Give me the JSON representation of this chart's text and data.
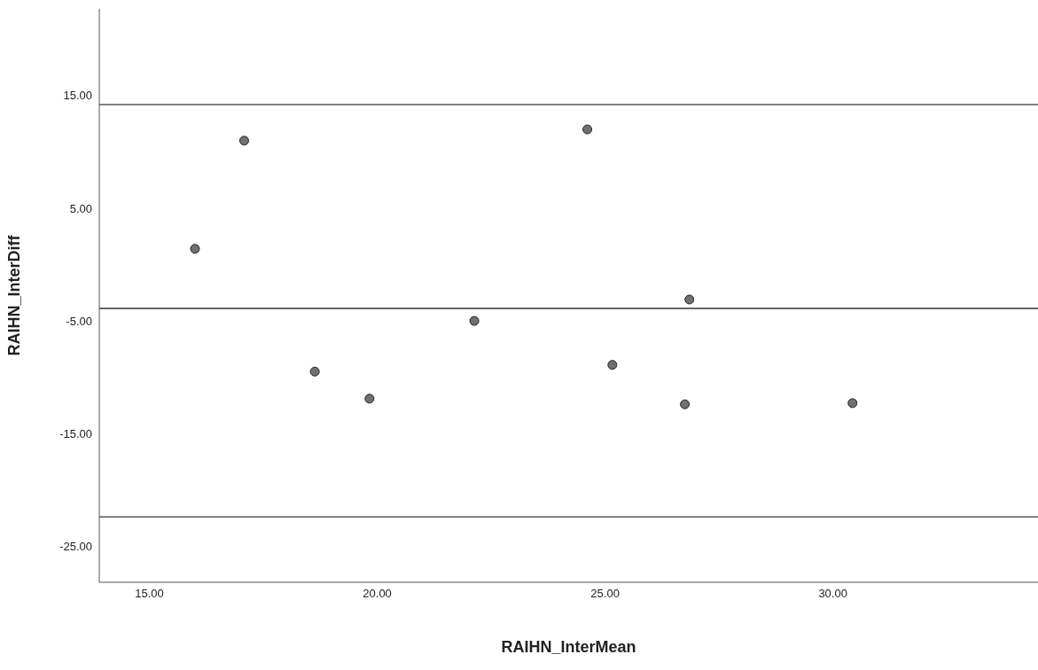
{
  "chart_data": {
    "type": "scatter",
    "xlabel": "RAIHN_InterMean",
    "ylabel": "RAIHN_InterDiff",
    "x": [
      16.0,
      17.08,
      18.63,
      19.83,
      22.13,
      24.61,
      25.16,
      26.85,
      26.75,
      30.43
    ],
    "series": [
      {
        "color": "#707070",
        "values": [
          1.4,
          11.0,
          -9.5,
          -11.9,
          -5.0,
          12.0,
          -8.9,
          -3.1,
          -12.4,
          -12.3
        ]
      }
    ],
    "xlim": [
      13.9,
      34.5
    ],
    "xticks": [
      {
        "value": 15,
        "label": "15.00"
      },
      {
        "value": 20,
        "label": "20.00"
      },
      {
        "value": 25,
        "label": "25.00"
      },
      {
        "value": 30,
        "label": "30.00"
      }
    ],
    "ylim": [
      -28.2,
      22.7
    ],
    "yticks": [
      {
        "value": -25,
        "label": "-25.00"
      },
      {
        "value": -15,
        "label": "-15.00"
      },
      {
        "value": -5,
        "label": "-5.00"
      },
      {
        "value": 5,
        "label": "5.00"
      },
      {
        "value": 15,
        "label": "15.00"
      }
    ],
    "ref_lines": [
      {
        "axis": "y",
        "value": 14.2,
        "color": "#595959"
      },
      {
        "axis": "y",
        "value": -3.9,
        "color": "#333333"
      },
      {
        "axis": "y",
        "value": -22.4,
        "color": "#595959"
      }
    ],
    "grid": false,
    "legend": false,
    "marker": "circle"
  }
}
